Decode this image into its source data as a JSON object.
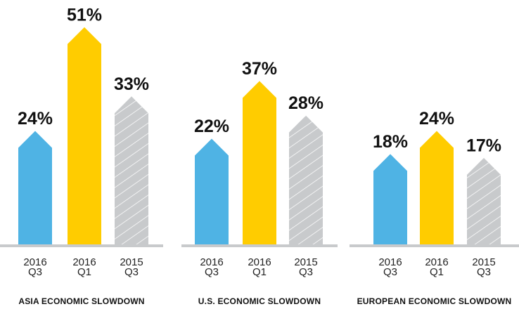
{
  "chart_data": [
    {
      "type": "bar",
      "title": "ASIA ECONOMIC SLOWDOWN",
      "categories": [
        [
          "2016",
          "Q3"
        ],
        [
          "2016",
          "Q1"
        ],
        [
          "2015",
          "Q3"
        ]
      ],
      "values": [
        24,
        51,
        33
      ],
      "value_labels": [
        "24%",
        "51%",
        "33%"
      ],
      "colors": [
        "#4fb3e4",
        "#ffcc00",
        "#c8cacc"
      ],
      "hatch": [
        false,
        false,
        true
      ],
      "ylim": [
        -5.5,
        51.5
      ]
    },
    {
      "type": "bar",
      "title": "U.S. ECONOMIC SLOWDOWN",
      "categories": [
        [
          "2016",
          "Q3"
        ],
        [
          "2016",
          "Q1"
        ],
        [
          "2015",
          "Q3"
        ]
      ],
      "values": [
        22,
        37,
        28
      ],
      "value_labels": [
        "22%",
        "37%",
        "28%"
      ],
      "colors": [
        "#4fb3e4",
        "#ffcc00",
        "#c8cacc"
      ],
      "hatch": [
        false,
        false,
        true
      ],
      "ylim": [
        -5.5,
        51.5
      ]
    },
    {
      "type": "bar",
      "title": "EUROPEAN ECONOMIC SLOWDOWN",
      "categories": [
        [
          "2016",
          "Q3"
        ],
        [
          "2016",
          "Q1"
        ],
        [
          "2015",
          "Q3"
        ]
      ],
      "values": [
        18,
        24,
        17
      ],
      "value_labels": [
        "18%",
        "24%",
        "17%"
      ],
      "colors": [
        "#4fb3e4",
        "#ffcc00",
        "#c8cacc"
      ],
      "hatch": [
        false,
        false,
        true
      ],
      "ylim": [
        -5.5,
        51.5
      ]
    }
  ]
}
